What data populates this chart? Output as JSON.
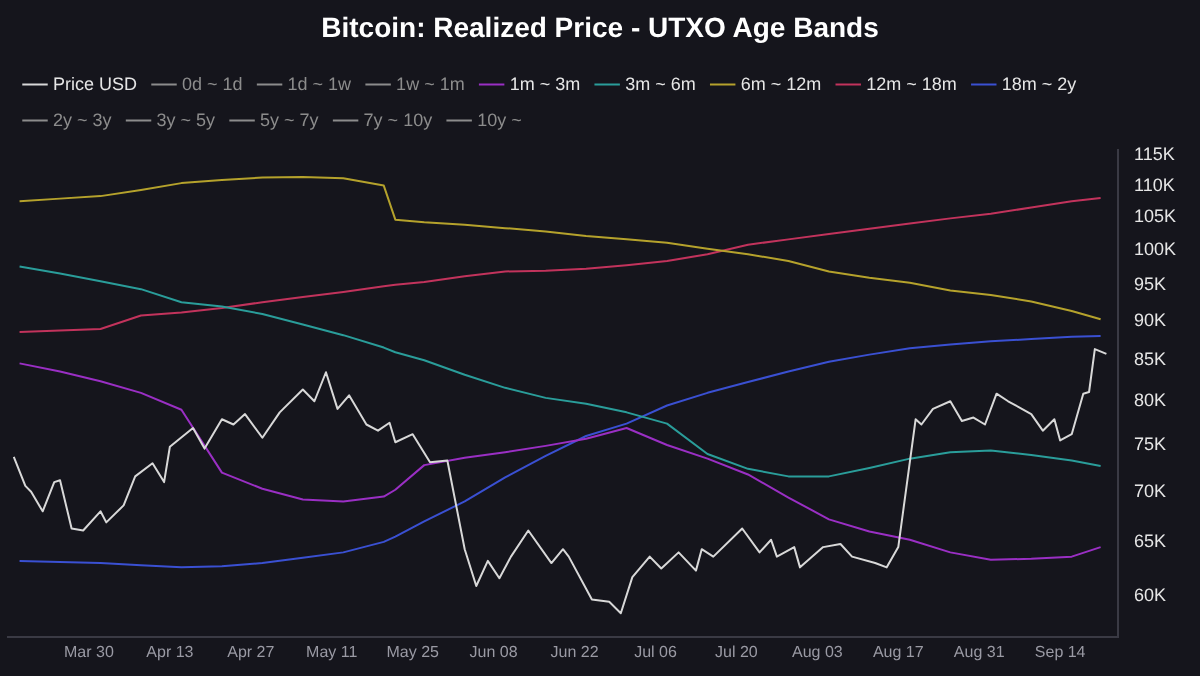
{
  "chart_data": {
    "type": "line",
    "title": "Bitcoin: Realized Price - UTXO Age Bands",
    "legend": "top left",
    "grid": false,
    "log": "y",
    "marker": "none",
    "line_style": "solid",
    "x": [
      "--03-18",
      "--03-25",
      "--04-01",
      "--04-08",
      "--04-15",
      "--04-22",
      "--04-29",
      "--05-06",
      "--05-13",
      "--05-20",
      "--05-22",
      "--05-27",
      "--06-03",
      "--06-10",
      "--06-17",
      "--06-24",
      "--07-01",
      "--07-08",
      "--07-15",
      "--07-22",
      "--07-29",
      "--08-05",
      "--08-12",
      "--08-19",
      "--08-26",
      "--09-02",
      "--09-09",
      "--09-16",
      "--09-21"
    ],
    "xlim": [
      "--03-16",
      "--09-24"
    ],
    "xticks": [
      {
        "value": "--03-30",
        "label": "Mar 30"
      },
      {
        "value": "--04-13",
        "label": "Apr 13"
      },
      {
        "value": "--04-27",
        "label": "Apr 27"
      },
      {
        "value": "--05-11",
        "label": "May 11"
      },
      {
        "value": "--05-25",
        "label": "May 25"
      },
      {
        "value": "--06-08",
        "label": "Jun 08"
      },
      {
        "value": "--06-22",
        "label": "Jun 22"
      },
      {
        "value": "--07-06",
        "label": "Jul 06"
      },
      {
        "value": "--07-20",
        "label": "Jul 20"
      },
      {
        "value": "--08-03",
        "label": "Aug 03"
      },
      {
        "value": "--08-17",
        "label": "Aug 17"
      },
      {
        "value": "--08-31",
        "label": "Aug 31"
      },
      {
        "value": "--09-14",
        "label": "Sep 14"
      }
    ],
    "ylim": [
      56500,
      116000
    ],
    "yticks": [
      {
        "value": 60000,
        "label": "60K"
      },
      {
        "value": 65000,
        "label": "65K"
      },
      {
        "value": 70000,
        "label": "70K"
      },
      {
        "value": 75000,
        "label": "75K"
      },
      {
        "value": 80000,
        "label": "80K"
      },
      {
        "value": 85000,
        "label": "85K"
      },
      {
        "value": 90000,
        "label": "90K"
      },
      {
        "value": 95000,
        "label": "95K"
      },
      {
        "value": 100000,
        "label": "100K"
      },
      {
        "value": 105000,
        "label": "105K"
      },
      {
        "value": 110000,
        "label": "110K"
      },
      {
        "value": 115000,
        "label": "115K"
      }
    ],
    "series": [
      {
        "name": "Price USD",
        "color": "#d8d8d8",
        "x": [
          "--03-17",
          "--03-19",
          "--03-20",
          "--03-22",
          "--03-24",
          "--03-25",
          "--03-27",
          "--03-29",
          "--04-01",
          "--04-02",
          "--04-05",
          "--04-07",
          "--04-10",
          "--04-12",
          "--04-13",
          "--04-17",
          "--04-19",
          "--04-22",
          "--04-24",
          "--04-26",
          "--04-29",
          "--05-02",
          "--05-06",
          "--05-08",
          "--05-10",
          "--05-12",
          "--05-14",
          "--05-17",
          "--05-19",
          "--05-21",
          "--05-22",
          "--05-25",
          "--05-28",
          "--05-31",
          "--06-03",
          "--06-05",
          "--06-07",
          "--06-09",
          "--06-11",
          "--06-14",
          "--06-18",
          "--06-20",
          "--06-21",
          "--06-25",
          "--06-28",
          "--06-30",
          "--07-02",
          "--07-05",
          "--07-07",
          "--07-10",
          "--07-13",
          "--07-14",
          "--07-16",
          "--07-21",
          "--07-24",
          "--07-26",
          "--07-27",
          "--07-30",
          "--07-31",
          "--08-04",
          "--08-07",
          "--08-09",
          "--08-13",
          "--08-15",
          "--08-17",
          "--08-20",
          "--08-21",
          "--08-23",
          "--08-26",
          "--08-28",
          "--08-30",
          "--09-01",
          "--09-03",
          "--09-05",
          "--09-09",
          "--09-11",
          "--09-13",
          "--09-14",
          "--09-16",
          "--09-18",
          "--09-19",
          "--09-20",
          "--09-22"
        ],
        "values": [
          73700,
          70600,
          70000,
          68000,
          71000,
          71200,
          66300,
          66100,
          68000,
          66900,
          68600,
          71600,
          73000,
          71000,
          74800,
          76900,
          74600,
          77900,
          77300,
          78500,
          75800,
          78700,
          81400,
          80000,
          83500,
          79100,
          80700,
          77300,
          76600,
          77500,
          75300,
          76200,
          73100,
          73300,
          64300,
          60900,
          63200,
          61600,
          63600,
          66100,
          63000,
          64300,
          63600,
          59700,
          59500,
          58500,
          61700,
          63600,
          62500,
          64000,
          62300,
          64300,
          63600,
          66300,
          64000,
          65200,
          63600,
          64500,
          62600,
          64500,
          64800,
          63600,
          63000,
          62600,
          64500,
          77900,
          77300,
          79100,
          80000,
          77700,
          78100,
          77300,
          80900,
          80000,
          78500,
          76600,
          77900,
          75500,
          76200,
          80900,
          81100,
          86400,
          85800
        ]
      },
      {
        "name": "0d ~ 1d",
        "color": "#8c8c8c",
        "values": [
          null,
          null,
          null,
          null,
          null,
          null,
          null,
          null,
          null,
          null,
          null,
          null,
          null,
          null,
          null,
          null,
          null,
          null,
          null,
          null,
          null,
          null,
          null,
          null,
          null,
          null,
          null,
          null,
          null
        ]
      },
      {
        "name": "1d ~ 1w",
        "color": "#8c8c8c",
        "values": [
          null,
          null,
          null,
          null,
          null,
          null,
          null,
          null,
          null,
          null,
          null,
          null,
          null,
          null,
          null,
          null,
          null,
          null,
          null,
          null,
          null,
          null,
          null,
          null,
          null,
          null,
          null,
          null,
          null
        ]
      },
      {
        "name": "1w ~ 1m",
        "color": "#8c8c8c",
        "values": [
          null,
          null,
          null,
          null,
          null,
          null,
          null,
          null,
          null,
          null,
          null,
          null,
          null,
          null,
          null,
          null,
          null,
          null,
          null,
          null,
          null,
          null,
          null,
          null,
          null,
          null,
          null,
          null,
          null
        ]
      },
      {
        "name": "1m ~ 3m",
        "color": "#9a2fc4",
        "values": [
          84600,
          83600,
          82400,
          81000,
          79000,
          72000,
          70300,
          69200,
          69000,
          69500,
          70200,
          72800,
          73600,
          74200,
          74900,
          75700,
          76900,
          75000,
          73500,
          71800,
          69400,
          67200,
          66000,
          65200,
          64000,
          63300,
          63400,
          63600,
          64500
        ]
      },
      {
        "name": "3m ~ 6m",
        "color": "#2a9d9a",
        "values": [
          97600,
          96600,
          95500,
          94400,
          92600,
          92000,
          91000,
          89600,
          88200,
          86600,
          86000,
          85000,
          83200,
          81600,
          80400,
          79700,
          78700,
          77400,
          74000,
          72400,
          71600,
          71600,
          72500,
          73500,
          74200,
          74400,
          73900,
          73300,
          72700
        ]
      },
      {
        "name": "6m ~ 12m",
        "color": "#b5a22c",
        "values": [
          107500,
          107900,
          108300,
          109300,
          110400,
          110900,
          111300,
          111400,
          111200,
          110000,
          104600,
          104200,
          103800,
          103300,
          102800,
          102100,
          101600,
          101100,
          100200,
          99400,
          98400,
          96900,
          96000,
          95300,
          94200,
          93600,
          92700,
          91400,
          90300
        ]
      },
      {
        "name": "12m ~ 18m",
        "color": "#c2335c",
        "values": [
          88600,
          88800,
          89000,
          90800,
          91200,
          91800,
          92600,
          93300,
          94000,
          94800,
          95000,
          95400,
          96200,
          96900,
          97000,
          97300,
          97800,
          98400,
          99400,
          100800,
          101600,
          102400,
          103200,
          104000,
          104800,
          105500,
          106500,
          107500,
          108000
        ]
      },
      {
        "name": "18m ~ 2y",
        "color": "#3a50d2",
        "values": [
          63200,
          63100,
          63000,
          62800,
          62600,
          62700,
          63000,
          63500,
          64000,
          65000,
          65500,
          67000,
          69000,
          71500,
          73800,
          76000,
          77400,
          79500,
          81000,
          82300,
          83600,
          84800,
          85700,
          86500,
          87000,
          87400,
          87700,
          88000,
          88100
        ]
      },
      {
        "name": "2y ~ 3y",
        "color": "#8c8c8c",
        "values": [
          null,
          null,
          null,
          null,
          null,
          null,
          null,
          null,
          null,
          null,
          null,
          null,
          null,
          null,
          null,
          null,
          null,
          null,
          null,
          null,
          null,
          null,
          null,
          null,
          null,
          null,
          null,
          null,
          null
        ]
      },
      {
        "name": "3y ~ 5y",
        "color": "#8c8c8c",
        "values": [
          null,
          null,
          null,
          null,
          null,
          null,
          null,
          null,
          null,
          null,
          null,
          null,
          null,
          null,
          null,
          null,
          null,
          null,
          null,
          null,
          null,
          null,
          null,
          null,
          null,
          null,
          null,
          null,
          null
        ]
      },
      {
        "name": "5y ~ 7y",
        "color": "#8c8c8c",
        "values": [
          null,
          null,
          null,
          null,
          null,
          null,
          null,
          null,
          null,
          null,
          null,
          null,
          null,
          null,
          null,
          null,
          null,
          null,
          null,
          null,
          null,
          null,
          null,
          null,
          null,
          null,
          null,
          null,
          null
        ]
      },
      {
        "name": "7y ~ 10y",
        "color": "#8c8c8c",
        "values": [
          null,
          null,
          null,
          null,
          null,
          null,
          null,
          null,
          null,
          null,
          null,
          null,
          null,
          null,
          null,
          null,
          null,
          null,
          null,
          null,
          null,
          null,
          null,
          null,
          null,
          null,
          null,
          null,
          null
        ]
      },
      {
        "name": "10y ~",
        "color": "#8c8c8c",
        "values": [
          null,
          null,
          null,
          null,
          null,
          null,
          null,
          null,
          null,
          null,
          null,
          null,
          null,
          null,
          null,
          null,
          null,
          null,
          null,
          null,
          null,
          null,
          null,
          null,
          null,
          null,
          null,
          null,
          null
        ]
      }
    ]
  }
}
